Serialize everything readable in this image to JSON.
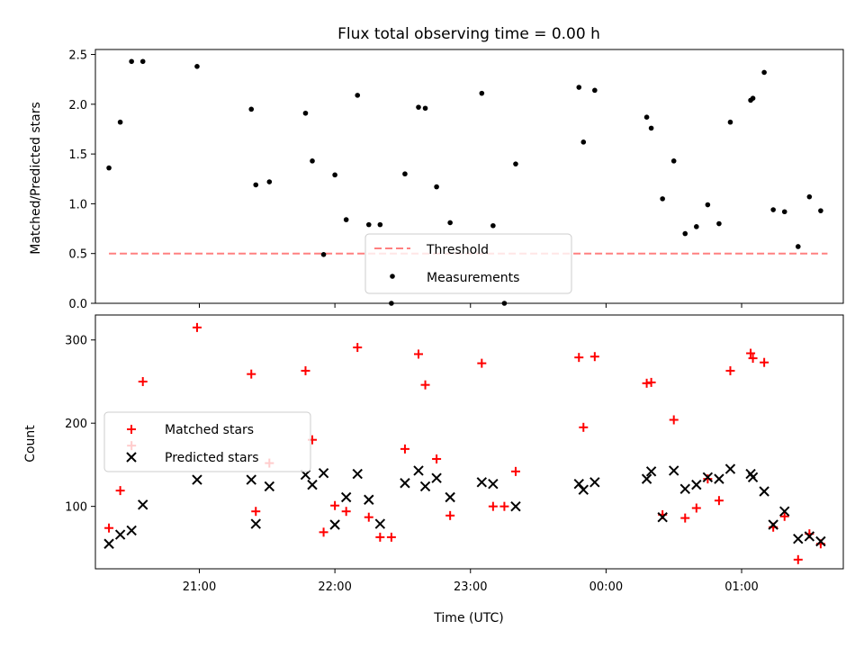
{
  "chart_data": [
    {
      "type": "scatter",
      "panel": "top",
      "title": "Flux total observing time = 0.00 h",
      "xlabel": "",
      "ylabel": "Matched/Predicted stars",
      "xlim": [
        "20:14",
        "01:45"
      ],
      "ylim": [
        0,
        2.55
      ],
      "yticks": [
        "0.0",
        "0.5",
        "1.0",
        "1.5",
        "2.0",
        "2.5"
      ],
      "threshold": {
        "name": "Threshold",
        "value": 0.5,
        "x_range": [
          "20:20",
          "01:38"
        ],
        "color": "#ff8080",
        "style": "dashed"
      },
      "legend": {
        "placement": "lower center"
      },
      "series": [
        {
          "name": "Measurements",
          "color": "#000000",
          "marker": "dot",
          "points": [
            [
              "20:20",
              1.36
            ],
            [
              "20:25",
              1.82
            ],
            [
              "20:30",
              2.43
            ],
            [
              "20:35",
              2.43
            ],
            [
              "20:59",
              2.38
            ],
            [
              "21:23",
              1.95
            ],
            [
              "21:25",
              1.19
            ],
            [
              "21:31",
              1.22
            ],
            [
              "21:47",
              1.91
            ],
            [
              "21:50",
              1.43
            ],
            [
              "21:55",
              0.49
            ],
            [
              "22:00",
              1.29
            ],
            [
              "22:05",
              0.84
            ],
            [
              "22:10",
              2.09
            ],
            [
              "22:15",
              0.79
            ],
            [
              "22:20",
              0.79
            ],
            [
              "22:25",
              0.0
            ],
            [
              "22:31",
              1.3
            ],
            [
              "22:37",
              1.97
            ],
            [
              "22:40",
              1.96
            ],
            [
              "22:45",
              1.17
            ],
            [
              "22:51",
              0.81
            ],
            [
              "23:05",
              2.11
            ],
            [
              "23:10",
              0.78
            ],
            [
              "23:15",
              0.0
            ],
            [
              "23:20",
              1.4
            ],
            [
              "23:48",
              2.17
            ],
            [
              "23:50",
              1.62
            ],
            [
              "23:55",
              2.14
            ],
            [
              "00:18",
              1.87
            ],
            [
              "00:20",
              1.76
            ],
            [
              "00:25",
              1.05
            ],
            [
              "00:30",
              1.43
            ],
            [
              "00:35",
              0.7
            ],
            [
              "00:40",
              0.77
            ],
            [
              "00:45",
              0.99
            ],
            [
              "00:50",
              0.8
            ],
            [
              "00:55",
              1.82
            ],
            [
              "01:04",
              2.04
            ],
            [
              "01:05",
              2.06
            ],
            [
              "01:10",
              2.32
            ],
            [
              "01:14",
              0.94
            ],
            [
              "01:19",
              0.92
            ],
            [
              "01:25",
              0.57
            ],
            [
              "01:30",
              1.07
            ],
            [
              "01:35",
              0.93
            ]
          ]
        }
      ]
    },
    {
      "type": "scatter",
      "panel": "bottom",
      "title": "",
      "xlabel": "Time (UTC)",
      "ylabel": "Count",
      "xlim": [
        "20:14",
        "01:45"
      ],
      "ylim": [
        25,
        330
      ],
      "yticks": [
        "100",
        "200",
        "300"
      ],
      "xticks": [
        "21:00",
        "22:00",
        "23:00",
        "00:00",
        "01:00"
      ],
      "legend": {
        "placement": "center-left"
      },
      "series": [
        {
          "name": "Matched stars",
          "color": "#ff0000",
          "marker": "plus",
          "points": [
            [
              "20:20",
              74
            ],
            [
              "20:25",
              119
            ],
            [
              "20:30",
              173
            ],
            [
              "20:35",
              250
            ],
            [
              "20:59",
              315
            ],
            [
              "21:23",
              259
            ],
            [
              "21:25",
              94
            ],
            [
              "21:31",
              152
            ],
            [
              "21:47",
              263
            ],
            [
              "21:50",
              180
            ],
            [
              "21:55",
              69
            ],
            [
              "22:00",
              101
            ],
            [
              "22:05",
              94
            ],
            [
              "22:10",
              291
            ],
            [
              "22:15",
              87
            ],
            [
              "22:20",
              63
            ],
            [
              "22:25",
              63
            ],
            [
              "22:31",
              169
            ],
            [
              "22:37",
              283
            ],
            [
              "22:40",
              246
            ],
            [
              "22:45",
              157
            ],
            [
              "22:51",
              89
            ],
            [
              "23:05",
              272
            ],
            [
              "23:10",
              100
            ],
            [
              "23:15",
              100
            ],
            [
              "23:20",
              142
            ],
            [
              "23:48",
              279
            ],
            [
              "23:50",
              195
            ],
            [
              "23:55",
              280
            ],
            [
              "00:18",
              248
            ],
            [
              "00:20",
              249
            ],
            [
              "00:25",
              90
            ],
            [
              "00:30",
              204
            ],
            [
              "00:35",
              86
            ],
            [
              "00:40",
              98
            ],
            [
              "00:45",
              133
            ],
            [
              "00:50",
              107
            ],
            [
              "00:55",
              263
            ],
            [
              "01:04",
              284
            ],
            [
              "01:05",
              278
            ],
            [
              "01:10",
              273
            ],
            [
              "01:14",
              75
            ],
            [
              "01:19",
              88
            ],
            [
              "01:25",
              36
            ],
            [
              "01:30",
              67
            ],
            [
              "01:35",
              55
            ]
          ]
        },
        {
          "name": "Predicted stars",
          "color": "#000000",
          "marker": "x",
          "points": [
            [
              "20:20",
              55
            ],
            [
              "20:25",
              66
            ],
            [
              "20:30",
              71
            ],
            [
              "20:35",
              102
            ],
            [
              "20:59",
              132
            ],
            [
              "21:23",
              132
            ],
            [
              "21:25",
              79
            ],
            [
              "21:31",
              124
            ],
            [
              "21:47",
              138
            ],
            [
              "21:50",
              126
            ],
            [
              "21:55",
              140
            ],
            [
              "22:00",
              78
            ],
            [
              "22:05",
              111
            ],
            [
              "22:10",
              139
            ],
            [
              "22:15",
              108
            ],
            [
              "22:20",
              79
            ],
            [
              "22:31",
              128
            ],
            [
              "22:37",
              143
            ],
            [
              "22:40",
              124
            ],
            [
              "22:45",
              134
            ],
            [
              "22:51",
              111
            ],
            [
              "23:05",
              129
            ],
            [
              "23:10",
              127
            ],
            [
              "23:20",
              100
            ],
            [
              "23:48",
              127
            ],
            [
              "23:50",
              120
            ],
            [
              "23:55",
              129
            ],
            [
              "00:18",
              133
            ],
            [
              "00:20",
              142
            ],
            [
              "00:25",
              87
            ],
            [
              "00:30",
              143
            ],
            [
              "00:35",
              121
            ],
            [
              "00:40",
              126
            ],
            [
              "00:45",
              135
            ],
            [
              "00:50",
              133
            ],
            [
              "00:55",
              145
            ],
            [
              "01:04",
              139
            ],
            [
              "01:05",
              135
            ],
            [
              "01:10",
              118
            ],
            [
              "01:14",
              78
            ],
            [
              "01:19",
              94
            ],
            [
              "01:25",
              61
            ],
            [
              "01:30",
              64
            ],
            [
              "01:35",
              58
            ]
          ]
        }
      ]
    }
  ]
}
